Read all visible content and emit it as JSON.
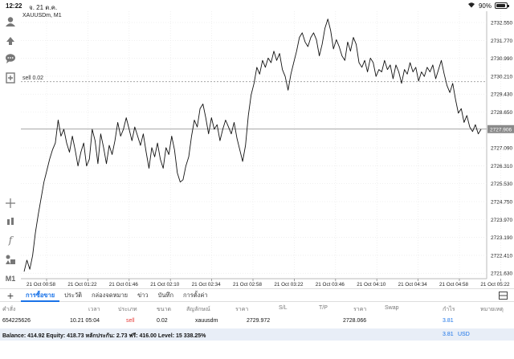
{
  "status": {
    "time": "12:22",
    "date": "จ. 21 ต.ค.",
    "battery": "90%"
  },
  "chart": {
    "symbol": "XAUUSDm, M1",
    "order_line_label": "sell 0.02",
    "current_price_tag": "2727.906",
    "colors": {
      "line": "#111111",
      "grid": "#e6e6e6",
      "order_line": "#999999",
      "price_line": "#888888"
    },
    "chart_data": {
      "type": "line",
      "title": "",
      "x_ticks": [
        "21 Oct 00:58",
        "21 Oct 01:22",
        "21 Oct 01:46",
        "21 Oct 02:10",
        "21 Oct 02:34",
        "21 Oct 02:58",
        "21 Oct 03:22",
        "21 Oct 03:46",
        "21 Oct 04:10",
        "21 Oct 04:34",
        "21 Oct 04:58",
        "21 Oct 05:22"
      ],
      "y_ticks": [
        "2732.550",
        "2731.770",
        "2730.990",
        "2730.210",
        "2729.430",
        "2728.650",
        "2727.906",
        "2727.090",
        "2726.310",
        "2725.530",
        "2724.750",
        "2723.970",
        "2723.190",
        "2722.410",
        "2721.630"
      ],
      "ylim": [
        2721.3,
        2732.9
      ],
      "order_price": 2729.972,
      "current_price": 2727.906,
      "grid": true,
      "values": [
        2721.7,
        2722.2,
        2721.8,
        2722.4,
        2723.4,
        2724.2,
        2724.9,
        2725.6,
        2726.1,
        2726.6,
        2727.0,
        2727.3,
        2728.3,
        2727.6,
        2727.9,
        2727.3,
        2726.9,
        2727.6,
        2727.0,
        2726.3,
        2726.9,
        2727.3,
        2726.3,
        2726.6,
        2727.9,
        2727.4,
        2726.4,
        2727.7,
        2727.1,
        2726.4,
        2727.2,
        2726.8,
        2727.4,
        2728.2,
        2727.6,
        2727.9,
        2728.4,
        2727.9,
        2727.4,
        2728.0,
        2727.6,
        2727.2,
        2727.7,
        2726.9,
        2726.2,
        2727.1,
        2726.7,
        2727.3,
        2726.6,
        2726.2,
        2727.1,
        2726.8,
        2727.6,
        2727.0,
        2726.0,
        2725.6,
        2725.7,
        2726.3,
        2726.7,
        2727.6,
        2728.3,
        2728.0,
        2728.8,
        2729.0,
        2728.4,
        2727.7,
        2728.4,
        2727.9,
        2728.1,
        2727.4,
        2727.9,
        2728.3,
        2728.0,
        2727.7,
        2728.2,
        2727.5,
        2727.0,
        2726.5,
        2727.2,
        2728.5,
        2729.4,
        2729.9,
        2730.6,
        2730.3,
        2730.9,
        2730.6,
        2731.0,
        2730.8,
        2731.3,
        2730.9,
        2731.2,
        2730.5,
        2730.2,
        2729.6,
        2730.3,
        2730.8,
        2731.3,
        2731.9,
        2732.1,
        2731.7,
        2731.5,
        2731.9,
        2732.1,
        2731.8,
        2731.1,
        2731.6,
        2732.3,
        2732.7,
        2732.2,
        2731.4,
        2731.8,
        2731.5,
        2731.1,
        2730.9,
        2731.7,
        2731.3,
        2731.9,
        2731.6,
        2730.8,
        2730.6,
        2730.9,
        2730.4,
        2731.0,
        2730.8,
        2730.2,
        2730.5,
        2730.4,
        2730.9,
        2730.5,
        2730.7,
        2730.1,
        2730.7,
        2730.4,
        2729.9,
        2730.5,
        2730.3,
        2730.8,
        2730.4,
        2730.6,
        2730.0,
        2730.4,
        2730.2,
        2730.6,
        2730.4,
        2730.7,
        2730.1,
        2730.5,
        2730.9,
        2730.3,
        2729.8,
        2729.5,
        2729.9,
        2729.2,
        2728.6,
        2728.8,
        2728.2,
        2728.5,
        2728.0,
        2727.8,
        2728.1,
        2727.7,
        2727.9
      ]
    }
  },
  "tabs": {
    "add_label": "+",
    "items": [
      "การซื้อขาย",
      "ประวัติ",
      "กล่องจดหมาย",
      "ข่าว",
      "บันทึก",
      "การตั้งค่า"
    ]
  },
  "table": {
    "headers": {
      "order": "คำสั่ง",
      "time": "เวลา",
      "type": "ประเภท",
      "volume": "ขนาด",
      "symbol": "สัญลักษณ์",
      "price": "ราคา",
      "sl": "S/L",
      "tp": "T/P",
      "cur_price": "ราคา",
      "swap": "Swap",
      "profit": "กำไร",
      "comment": "หมายเหตุ"
    },
    "row": {
      "order": "654225626",
      "time": "10.21 05:04",
      "type": "sell",
      "volume": "0.02",
      "symbol": "xauusdm",
      "price": "2729.972",
      "cur_price": "2728.066",
      "profit": "3.81"
    }
  },
  "balance": {
    "text": "Balance: 414.92 Equity: 418.73 หลักประกัน: 2.73 ฟรี: 416.00 Level: 15 338.25%",
    "profit": "3.81",
    "currency": "USD"
  }
}
